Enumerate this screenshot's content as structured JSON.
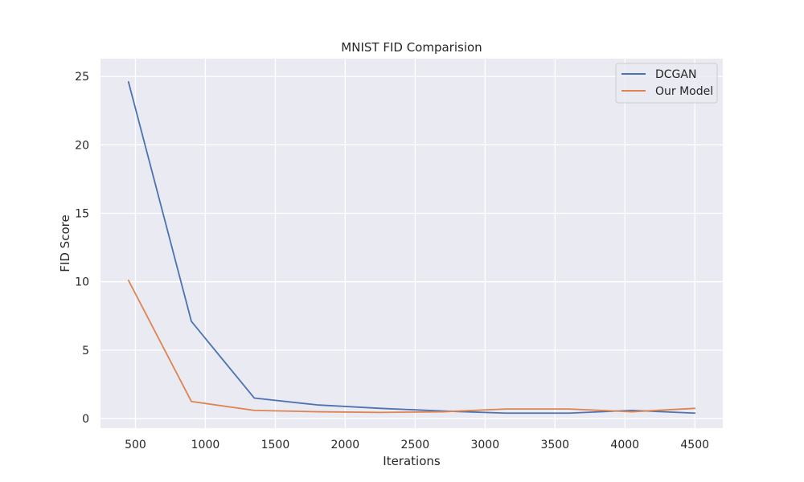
{
  "chart_data": {
    "type": "line",
    "title": "MNIST FID Comparision",
    "xlabel": "Iterations",
    "ylabel": "FID Score",
    "xlim": [
      250,
      4700
    ],
    "ylim": [
      -0.7,
      26.3
    ],
    "xticks": [
      500,
      1000,
      1500,
      2000,
      2500,
      3000,
      3500,
      4000,
      4500
    ],
    "yticks": [
      0,
      5,
      10,
      15,
      20,
      25
    ],
    "x": [
      450,
      900,
      1350,
      1800,
      2250,
      2700,
      3150,
      3600,
      4050,
      4500
    ],
    "series": [
      {
        "name": "DCGAN",
        "color": "#4c72b0",
        "values": [
          24.6,
          7.1,
          1.5,
          1.0,
          0.75,
          0.55,
          0.4,
          0.4,
          0.6,
          0.4
        ]
      },
      {
        "name": "Our Model",
        "color": "#dd8452",
        "values": [
          10.1,
          1.25,
          0.6,
          0.5,
          0.45,
          0.5,
          0.7,
          0.7,
          0.5,
          0.75
        ]
      }
    ],
    "grid": true,
    "legend_position": "top-right",
    "background_color": "#eaeaf2",
    "grid_color": "#ffffff"
  }
}
